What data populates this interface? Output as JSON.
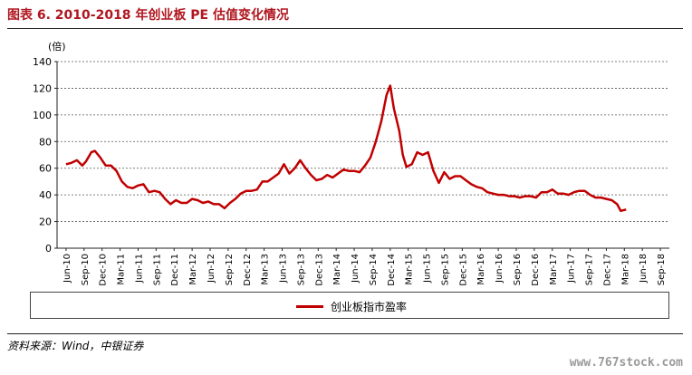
{
  "header": {
    "title": "图表 6. 2010-2018 年创业板 PE 估值变化情况"
  },
  "footer": {
    "source": "资料来源：Wind，中银证券",
    "watermark": "www.767stock.com"
  },
  "chart_data": {
    "type": "line",
    "title": "图表 6. 2010-2018 年创业板 PE 估值变化情况",
    "unit_label": "(倍)",
    "ylim": [
      0,
      140
    ],
    "yticks": [
      0,
      20,
      40,
      60,
      80,
      100,
      120,
      140
    ],
    "grid": true,
    "legend_position": "bottom",
    "categories": [
      "Jun-10",
      "Sep-10",
      "Dec-10",
      "Mar-11",
      "Jun-11",
      "Sep-11",
      "Dec-11",
      "Mar-12",
      "Jun-12",
      "Sep-12",
      "Dec-12",
      "Mar-13",
      "Jun-13",
      "Sep-13",
      "Dec-13",
      "Mar-14",
      "Jun-14",
      "Sep-14",
      "Dec-14",
      "Mar-15",
      "Jun-15",
      "Sep-15",
      "Dec-15",
      "Mar-16",
      "Jun-16",
      "Sep-16",
      "Dec-16",
      "Mar-17",
      "Jun-17",
      "Sep-17",
      "Dec-17",
      "Mar-18",
      "Jun-18",
      "Sep-18"
    ],
    "series": [
      {
        "name": "创业板指市盈率",
        "color": "#c00000",
        "points": [
          [
            0,
            63
          ],
          [
            0.3,
            64
          ],
          [
            0.6,
            66
          ],
          [
            0.9,
            62
          ],
          [
            1.1,
            65
          ],
          [
            1.4,
            72
          ],
          [
            1.6,
            73
          ],
          [
            1.9,
            68
          ],
          [
            2.2,
            62
          ],
          [
            2.5,
            62
          ],
          [
            2.8,
            58
          ],
          [
            3.1,
            50
          ],
          [
            3.4,
            46
          ],
          [
            3.7,
            45
          ],
          [
            4.0,
            47
          ],
          [
            4.3,
            48
          ],
          [
            4.6,
            42
          ],
          [
            4.9,
            43
          ],
          [
            5.2,
            42
          ],
          [
            5.5,
            37
          ],
          [
            5.8,
            33
          ],
          [
            6.1,
            36
          ],
          [
            6.4,
            34
          ],
          [
            6.7,
            34
          ],
          [
            7.0,
            37
          ],
          [
            7.3,
            36
          ],
          [
            7.6,
            34
          ],
          [
            7.9,
            35
          ],
          [
            8.2,
            33
          ],
          [
            8.5,
            33
          ],
          [
            8.8,
            30
          ],
          [
            9.1,
            34
          ],
          [
            9.4,
            37
          ],
          [
            9.7,
            41
          ],
          [
            10.0,
            43
          ],
          [
            10.3,
            43
          ],
          [
            10.6,
            44
          ],
          [
            10.9,
            50
          ],
          [
            11.2,
            50
          ],
          [
            11.5,
            53
          ],
          [
            11.8,
            56
          ],
          [
            12.1,
            63
          ],
          [
            12.4,
            56
          ],
          [
            12.7,
            60
          ],
          [
            13.0,
            66
          ],
          [
            13.3,
            60
          ],
          [
            13.6,
            55
          ],
          [
            13.9,
            51
          ],
          [
            14.2,
            52
          ],
          [
            14.5,
            55
          ],
          [
            14.8,
            53
          ],
          [
            15.1,
            56
          ],
          [
            15.4,
            59
          ],
          [
            15.7,
            58
          ],
          [
            16.0,
            58
          ],
          [
            16.3,
            57
          ],
          [
            16.6,
            62
          ],
          [
            16.9,
            68
          ],
          [
            17.2,
            80
          ],
          [
            17.5,
            95
          ],
          [
            17.8,
            115
          ],
          [
            18.0,
            122
          ],
          [
            18.2,
            105
          ],
          [
            18.5,
            88
          ],
          [
            18.7,
            70
          ],
          [
            18.9,
            61
          ],
          [
            19.2,
            63
          ],
          [
            19.5,
            72
          ],
          [
            19.8,
            70
          ],
          [
            20.1,
            72
          ],
          [
            20.4,
            58
          ],
          [
            20.7,
            49
          ],
          [
            21.0,
            57
          ],
          [
            21.3,
            52
          ],
          [
            21.6,
            54
          ],
          [
            21.9,
            54
          ],
          [
            22.2,
            51
          ],
          [
            22.5,
            48
          ],
          [
            22.8,
            46
          ],
          [
            23.1,
            45
          ],
          [
            23.4,
            42
          ],
          [
            23.7,
            41
          ],
          [
            24.0,
            40
          ],
          [
            24.3,
            40
          ],
          [
            24.6,
            39
          ],
          [
            24.9,
            39
          ],
          [
            25.2,
            38
          ],
          [
            25.5,
            39
          ],
          [
            25.8,
            39
          ],
          [
            26.1,
            38
          ],
          [
            26.4,
            42
          ],
          [
            26.7,
            42
          ],
          [
            27.0,
            44
          ],
          [
            27.3,
            41
          ],
          [
            27.6,
            41
          ],
          [
            27.9,
            40
          ],
          [
            28.2,
            42
          ],
          [
            28.5,
            43
          ],
          [
            28.8,
            43
          ],
          [
            29.1,
            40
          ],
          [
            29.4,
            38
          ],
          [
            29.7,
            38
          ],
          [
            30.0,
            37
          ],
          [
            30.3,
            36
          ],
          [
            30.6,
            33
          ],
          [
            30.8,
            28
          ],
          [
            31.1,
            29
          ]
        ]
      }
    ]
  }
}
